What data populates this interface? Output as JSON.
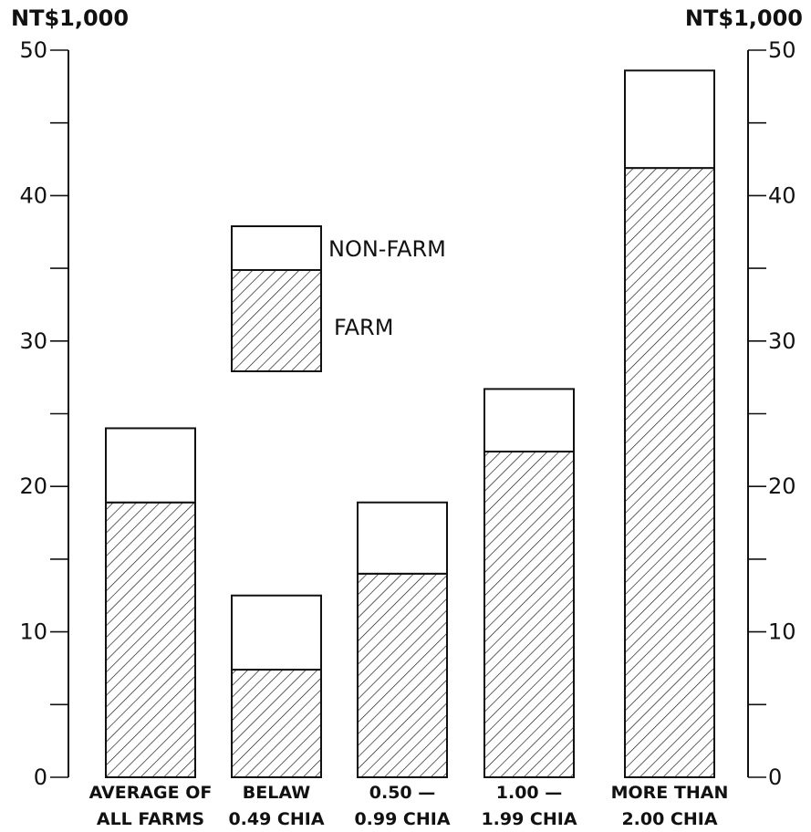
{
  "chart_data": {
    "type": "bar",
    "stacked": true,
    "title": "",
    "xlabel": "",
    "ylabel_left": "NT$1,000",
    "ylabel_right": "NT$1,000",
    "ylim": [
      0,
      50
    ],
    "y_ticks": [
      0,
      10,
      20,
      30,
      40,
      50
    ],
    "grid": false,
    "legend_position": "upper-left-center",
    "categories": [
      [
        "AVERAGE OF",
        "ALL FARMS"
      ],
      [
        "BELAW",
        "0.49 CHIA"
      ],
      [
        "0.50 —",
        "0.99 CHIA"
      ],
      [
        "1.00 —",
        "1.99 CHIA"
      ],
      [
        "MORE THAN",
        "2.00 CHIA"
      ]
    ],
    "series": [
      {
        "name": "FARM",
        "pattern": "hatched",
        "values": [
          18.9,
          7.4,
          14.0,
          22.4,
          41.9
        ]
      },
      {
        "name": "NON-FARM",
        "pattern": "white",
        "values": [
          5.1,
          5.1,
          4.9,
          4.3,
          6.7
        ]
      }
    ],
    "colors": {
      "ink": "#111111",
      "background": "#ffffff"
    }
  }
}
